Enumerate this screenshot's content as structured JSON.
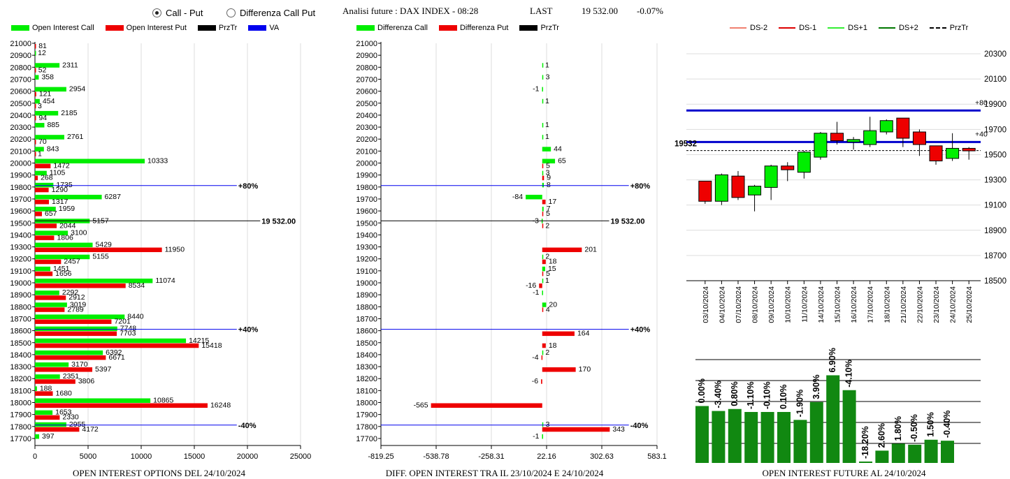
{
  "controls": {
    "options": [
      {
        "label": "Call - Put",
        "selected": true
      },
      {
        "label": "Differenza Call Put",
        "selected": false
      }
    ]
  },
  "header": {
    "title": "Analisi future : DAX INDEX - 08:28",
    "last_label": "LAST",
    "last_value": "19 532.00",
    "change": "-0.07%"
  },
  "legends": {
    "left": [
      {
        "label": "Open Interest Call",
        "color": "#00ee00"
      },
      {
        "label": "Open Interest Put",
        "color": "#ee0000"
      },
      {
        "label": "PrzTr",
        "color": "#000000"
      },
      {
        "label": "VA",
        "color": "#0000ee"
      }
    ],
    "middle": [
      {
        "label": "Differenza Call",
        "color": "#00ee00"
      },
      {
        "label": "Differenza Put",
        "color": "#ee0000"
      },
      {
        "label": "PrzTr",
        "color": "#000000"
      }
    ],
    "right": [
      {
        "label": "DS-2",
        "color": "#f08070",
        "dash": false
      },
      {
        "label": "DS-1",
        "color": "#dd0000",
        "dash": false
      },
      {
        "label": "DS+1",
        "color": "#33ee33",
        "dash": false
      },
      {
        "label": "DS+2",
        "color": "#007700",
        "dash": false
      },
      {
        "label": "PrzTr",
        "color": "#000000",
        "dash": true
      }
    ]
  },
  "captions": {
    "left": "OPEN INTEREST OPTIONS DEL 24/10/2024",
    "middle": "DIFF. OPEN INTEREST TRA IL 23/10/2024 E 24/10/2024",
    "right": "OPEN INTEREST FUTURE AL 24/10/2024"
  },
  "chart_data": [
    {
      "type": "bar",
      "orientation": "horizontal",
      "strikes": [
        21000,
        20900,
        20800,
        20700,
        20600,
        20500,
        20400,
        20300,
        20200,
        20100,
        20000,
        19900,
        19800,
        19700,
        19600,
        19500,
        19400,
        19300,
        19200,
        19100,
        19000,
        18900,
        18800,
        18700,
        18600,
        18500,
        18400,
        18300,
        18200,
        18100,
        18000,
        17900,
        17800,
        17700
      ],
      "series": [
        {
          "name": "Open Interest Call",
          "color": "#00ee00",
          "values": [
            null,
            12,
            2311,
            358,
            2954,
            454,
            2185,
            885,
            2761,
            843,
            10333,
            1105,
            1735,
            6287,
            1959,
            5157,
            3100,
            5429,
            5155,
            1451,
            11074,
            2292,
            3019,
            8440,
            7748,
            14215,
            6392,
            3170,
            2351,
            188,
            10865,
            1653,
            2955,
            397
          ]
        },
        {
          "name": "Open Interest Put",
          "color": "#ee0000",
          "values": [
            81,
            null,
            52,
            null,
            121,
            3,
            94,
            null,
            70,
            1,
            1472,
            268,
            1290,
            1317,
            657,
            2044,
            1806,
            11950,
            2457,
            1656,
            8534,
            2912,
            2789,
            7201,
            7703,
            15418,
            6671,
            5397,
            3806,
            1680,
            16248,
            2330,
            4172,
            null
          ]
        }
      ],
      "xlim": [
        0,
        25000
      ],
      "x_ticks": [
        "0",
        "5000",
        "10000",
        "15000",
        "20000",
        "25000"
      ],
      "reference_lines": [
        {
          "strike": 19800,
          "label": "+80%",
          "color": "#0000ee",
          "x_end": 19000
        },
        {
          "strike": 19500,
          "label": "19 532.00",
          "color": "#000000",
          "x_end": 21200
        },
        {
          "strike": 18600,
          "label": "+40%",
          "color": "#0000ee",
          "x_end": 19000
        },
        {
          "strike": 17800,
          "label": "-40%",
          "color": "#0000ee",
          "x_end": 19000
        }
      ]
    },
    {
      "type": "bar",
      "orientation": "horizontal",
      "strikes": [
        21000,
        20900,
        20800,
        20700,
        20600,
        20500,
        20400,
        20300,
        20200,
        20100,
        20000,
        19900,
        19800,
        19700,
        19600,
        19500,
        19400,
        19300,
        19200,
        19100,
        19000,
        18900,
        18800,
        18700,
        18600,
        18500,
        18400,
        18300,
        18200,
        18100,
        18000,
        17900,
        17800,
        17700
      ],
      "series": [
        {
          "name": "Differenza Call",
          "color": "#00ee00",
          "values": [
            null,
            null,
            1,
            3,
            -1,
            1,
            null,
            1,
            1,
            44,
            65,
            3,
            8,
            -84,
            7,
            -3,
            null,
            null,
            2,
            15,
            1,
            -1,
            20,
            null,
            null,
            null,
            2,
            null,
            null,
            null,
            null,
            null,
            3,
            -1
          ]
        },
        {
          "name": "Differenza Put",
          "color": "#ee0000",
          "values": [
            null,
            null,
            null,
            null,
            null,
            null,
            null,
            null,
            null,
            null,
            5,
            9,
            null,
            17,
            5,
            2,
            null,
            201,
            18,
            5,
            -16,
            null,
            4,
            null,
            164,
            18,
            -4,
            170,
            -6,
            null,
            -565,
            null,
            343,
            null
          ]
        }
      ],
      "xlim": [
        -819.25,
        583.1
      ],
      "x_ticks": [
        "-819.25",
        "-538.78",
        "-258.31",
        "22.16",
        "302.63",
        "583.1"
      ],
      "reference_lines": [
        {
          "strike": 19800,
          "label": "+80%",
          "color": "#0000ee",
          "x_end": 440
        },
        {
          "strike": 19500,
          "label": "19 532.00",
          "color": "#000000",
          "x_end": 340
        },
        {
          "strike": 18600,
          "label": "+40%",
          "color": "#0000ee",
          "x_end": 440
        },
        {
          "strike": 17800,
          "label": "-40%",
          "color": "#0000ee",
          "x_end": 440
        }
      ]
    },
    {
      "type": "candlestick",
      "dates": [
        "03/10/2024",
        "04/10/2024",
        "07/10/2024",
        "08/10/2024",
        "09/10/2024",
        "10/10/2024",
        "11/10/2024",
        "14/10/2024",
        "15/10/2024",
        "16/10/2024",
        "17/10/2024",
        "18/10/2024",
        "21/10/2024",
        "22/10/2024",
        "23/10/2024",
        "24/10/2024",
        "25/10/2024"
      ],
      "ohlc": [
        [
          19290,
          19290,
          19110,
          19130
        ],
        [
          19130,
          19350,
          19100,
          19340
        ],
        [
          19330,
          19370,
          19140,
          19160
        ],
        [
          19180,
          19260,
          19050,
          19250
        ],
        [
          19240,
          19420,
          19140,
          19410
        ],
        [
          19410,
          19440,
          19290,
          19380
        ],
        [
          19360,
          19530,
          19310,
          19520
        ],
        [
          19480,
          19680,
          19460,
          19670
        ],
        [
          19670,
          19760,
          19580,
          19610
        ],
        [
          19600,
          19640,
          19540,
          19620
        ],
        [
          19580,
          19800,
          19560,
          19690
        ],
        [
          19680,
          19780,
          19660,
          19770
        ],
        [
          19790,
          19790,
          19560,
          19630
        ],
        [
          19680,
          19700,
          19490,
          19580
        ],
        [
          19570,
          19570,
          19420,
          19450
        ],
        [
          19470,
          19670,
          19450,
          19550
        ],
        [
          19550,
          19560,
          19460,
          19530
        ]
      ],
      "ylim": [
        18500,
        20350
      ],
      "y_ticks": [
        "20300",
        "20100",
        "19900",
        "19700",
        "19500",
        "19300",
        "19100",
        "18900",
        "18700",
        "18500"
      ],
      "reference_lines": [
        {
          "value": 19850,
          "label": "+80",
          "color": "#0000cc"
        },
        {
          "value": 19600,
          "label": "+40",
          "color": "#0000cc"
        }
      ],
      "last_price": 19532,
      "last_label": "19532"
    },
    {
      "type": "bar",
      "values": [
        0.0,
        -3.4,
        0.8,
        -1.1,
        -0.1,
        0.1,
        -1.9,
        3.9,
        6.9,
        -4.1,
        -18.2,
        2.6,
        1.8,
        -0.5,
        1.5,
        -0.4
      ],
      "labels": [
        "0.00%",
        "-3.40%",
        "0.80%",
        "-1.10%",
        "-0.10%",
        "0.10%",
        "-1.90%",
        "3.90%",
        "6.90%",
        "-4.10%",
        "-18.20%",
        "2.60%",
        "1.80%",
        "-0.50%",
        "1.50%",
        "-0.40%"
      ],
      "relative_level": [
        0.56,
        0.51,
        0.53,
        0.5,
        0.5,
        0.5,
        0.42,
        0.6,
        0.87,
        0.72,
        0.0,
        0.11,
        0.18,
        0.17,
        0.22,
        0.21
      ],
      "color": "#118811"
    }
  ]
}
